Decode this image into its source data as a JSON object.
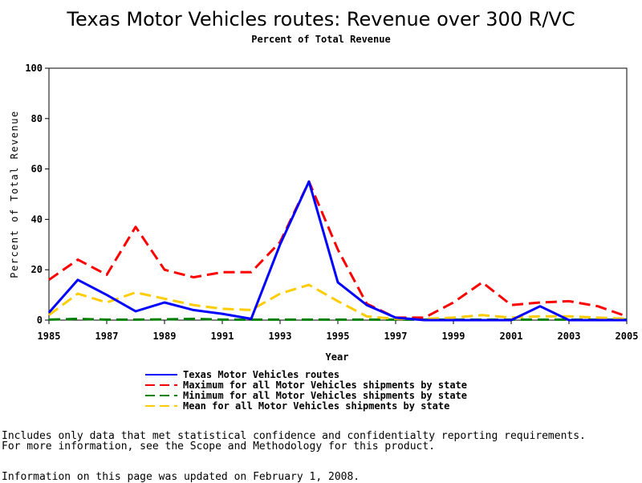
{
  "chart_data": {
    "type": "line",
    "title": "Texas Motor Vehicles routes: Revenue over 300 R/VC",
    "subtitle": "Percent of Total Revenue",
    "xlabel": "Year",
    "ylabel": "Percent of Total Revenue",
    "xlim": [
      1985,
      2005
    ],
    "ylim": [
      0,
      100
    ],
    "x_ticks": [
      1985,
      1987,
      1989,
      1991,
      1993,
      1995,
      1997,
      1999,
      2001,
      2003,
      2005
    ],
    "y_ticks": [
      0,
      20,
      40,
      60,
      80,
      100
    ],
    "grid": false,
    "legend_position": "bottom",
    "x": [
      1985,
      1986,
      1987,
      1988,
      1989,
      1990,
      1991,
      1992,
      1993,
      1994,
      1995,
      1996,
      1997,
      1998,
      1999,
      2000,
      2001,
      2002,
      2003,
      2004,
      2005
    ],
    "series": [
      {
        "name": "Texas Motor Vehicles routes",
        "color": "#0000ff",
        "style": "solid",
        "values": [
          3,
          16,
          10,
          3.5,
          7,
          4,
          2.5,
          0.5,
          30,
          55,
          15,
          6,
          1,
          0,
          0,
          0,
          0,
          5.5,
          0,
          0,
          0
        ]
      },
      {
        "name": "Maximum for all Motor Vehicles shipments by state",
        "color": "#ff0000",
        "style": "dashed",
        "values": [
          16,
          24,
          18,
          37,
          20,
          17,
          19,
          19,
          31,
          55,
          28,
          6.5,
          1,
          1,
          7,
          15,
          6,
          7,
          7.5,
          5.5,
          1.5
        ]
      },
      {
        "name": "Minimum for all Motor Vehicles shipments by state",
        "color": "#008000",
        "style": "dashed",
        "values": [
          0.2,
          0.5,
          0.2,
          0.2,
          0.3,
          0.5,
          0.2,
          0.2,
          0.2,
          0.2,
          0.2,
          0.2,
          0.2,
          0.2,
          0.2,
          0.2,
          0.2,
          0.2,
          0.2,
          0.2,
          0.2
        ]
      },
      {
        "name": "Mean for all Motor Vehicles shipments by state",
        "color": "#ffcc00",
        "style": "dashed",
        "values": [
          2,
          10.5,
          7,
          11,
          8.5,
          6,
          4.5,
          4,
          10.5,
          14,
          7.5,
          1.5,
          0.5,
          0.5,
          1,
          2,
          1,
          1.5,
          1.5,
          1,
          0.5
        ]
      }
    ]
  },
  "footnotes": {
    "line1": "Includes only data that met statistical confidence and confidentialty reporting requirements.",
    "line2": "For more information, see the Scope and Methodology for this product.",
    "updated": "Information on this page was updated on February 1, 2008."
  }
}
